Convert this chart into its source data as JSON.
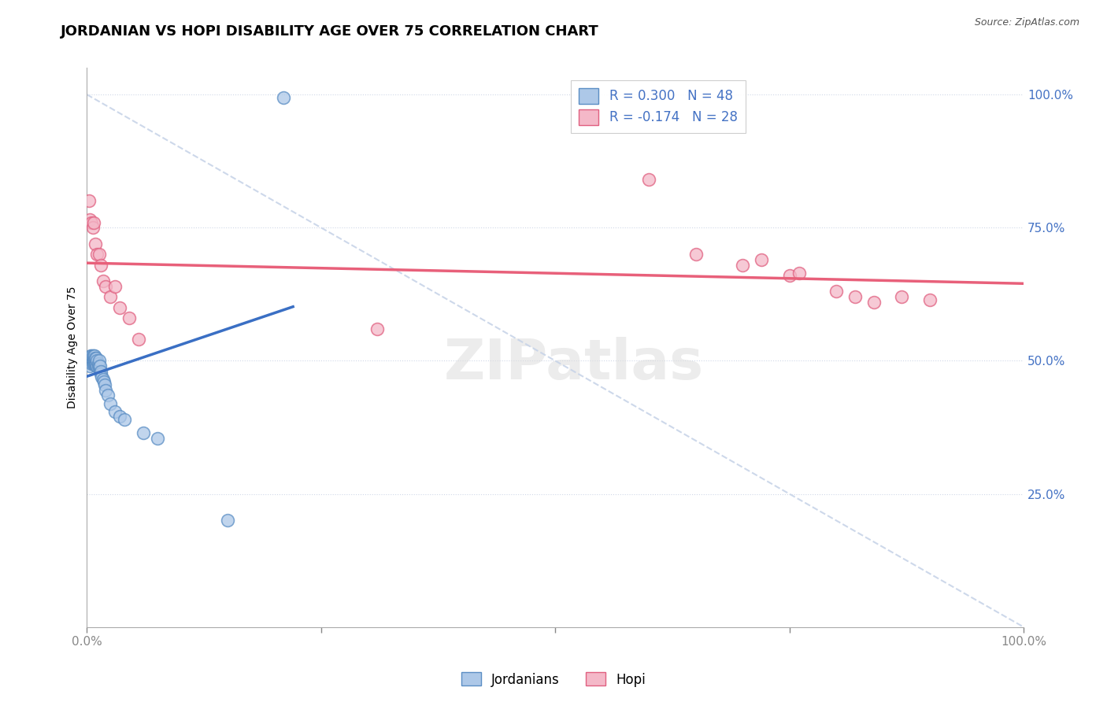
{
  "title": "JORDANIAN VS HOPI DISABILITY AGE OVER 75 CORRELATION CHART",
  "source": "Source: ZipAtlas.com",
  "ylabel": "Disability Age Over 75",
  "jordanian_color": "#adc8e8",
  "jordanian_edge_color": "#5b8ec4",
  "hopi_color": "#f4b8c8",
  "hopi_edge_color": "#e06080",
  "jordanian_line_color": "#3a6fc4",
  "hopi_line_color": "#e8607a",
  "diagonal_color": "#c8d4e8",
  "grid_color": "#d0d8e8",
  "background_color": "#ffffff",
  "title_fontsize": 13,
  "axis_label_fontsize": 10,
  "tick_fontsize": 11,
  "R_jordanian": 0.3,
  "N_jordanian": 48,
  "R_hopi": -0.174,
  "N_hopi": 28,
  "xlim": [
    0.0,
    1.0
  ],
  "ylim": [
    0.0,
    1.05
  ],
  "ytick_positions": [
    0.25,
    0.5,
    0.75,
    1.0
  ],
  "ytick_labels": [
    "25.0%",
    "50.0%",
    "75.0%",
    "100.0%"
  ],
  "jordanian_x": [
    0.001,
    0.002,
    0.003,
    0.004,
    0.004,
    0.005,
    0.005,
    0.005,
    0.006,
    0.006,
    0.006,
    0.007,
    0.007,
    0.007,
    0.007,
    0.008,
    0.008,
    0.008,
    0.008,
    0.009,
    0.009,
    0.009,
    0.01,
    0.01,
    0.01,
    0.011,
    0.011,
    0.012,
    0.012,
    0.013,
    0.013,
    0.014,
    0.015,
    0.015,
    0.016,
    0.017,
    0.018,
    0.019,
    0.02,
    0.022,
    0.025,
    0.03,
    0.035,
    0.04,
    0.06,
    0.075,
    0.15,
    0.21
  ],
  "jordanian_y": [
    0.505,
    0.5,
    0.49,
    0.505,
    0.51,
    0.495,
    0.505,
    0.51,
    0.495,
    0.5,
    0.51,
    0.495,
    0.5,
    0.505,
    0.51,
    0.495,
    0.5,
    0.505,
    0.51,
    0.495,
    0.5,
    0.505,
    0.49,
    0.495,
    0.505,
    0.49,
    0.5,
    0.49,
    0.495,
    0.49,
    0.5,
    0.49,
    0.475,
    0.48,
    0.47,
    0.465,
    0.46,
    0.455,
    0.445,
    0.435,
    0.42,
    0.405,
    0.395,
    0.39,
    0.365,
    0.355,
    0.2,
    0.995
  ],
  "hopi_x": [
    0.002,
    0.003,
    0.005,
    0.006,
    0.007,
    0.009,
    0.011,
    0.013,
    0.015,
    0.017,
    0.02,
    0.025,
    0.03,
    0.035,
    0.045,
    0.055,
    0.31,
    0.6,
    0.65,
    0.7,
    0.72,
    0.75,
    0.76,
    0.8,
    0.82,
    0.84,
    0.87,
    0.9
  ],
  "hopi_y": [
    0.8,
    0.765,
    0.76,
    0.75,
    0.76,
    0.72,
    0.7,
    0.7,
    0.68,
    0.65,
    0.64,
    0.62,
    0.64,
    0.6,
    0.58,
    0.54,
    0.56,
    0.84,
    0.7,
    0.68,
    0.69,
    0.66,
    0.665,
    0.63,
    0.62,
    0.61,
    0.62,
    0.615
  ]
}
